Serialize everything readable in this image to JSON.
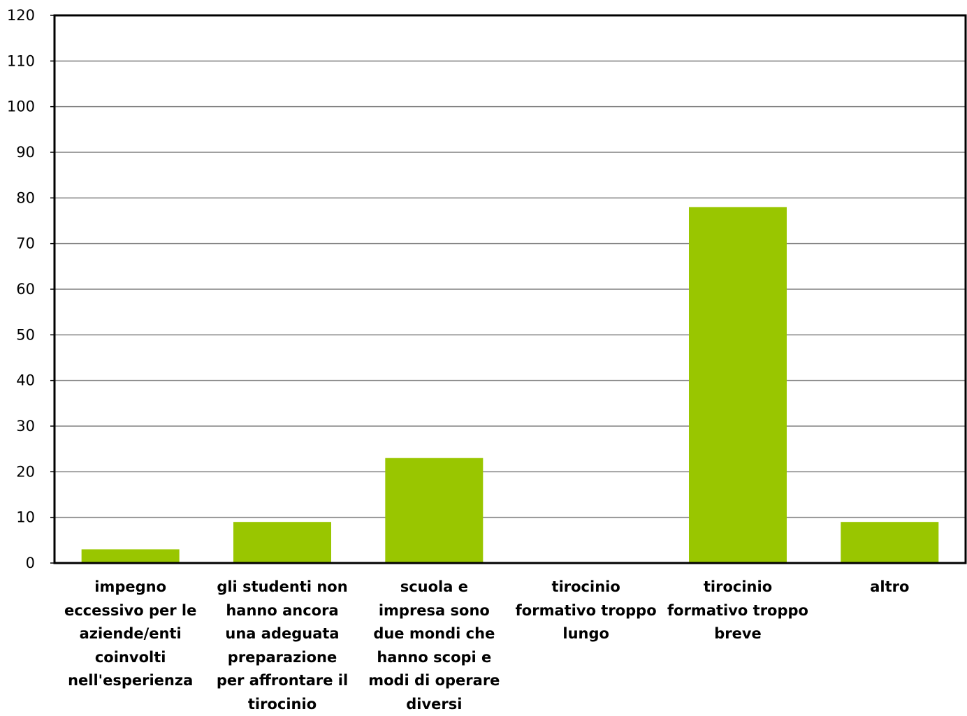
{
  "chart_data": {
    "type": "bar",
    "title": "",
    "xlabel": "",
    "ylabel": "",
    "ylim": [
      0,
      120
    ],
    "yticks": [
      0,
      10,
      20,
      30,
      40,
      50,
      60,
      70,
      80,
      90,
      100,
      110,
      120
    ],
    "grid": true,
    "bar_color": "#99c600",
    "categories": [
      "impegno eccessivo per le aziende/enti coinvolti nell'esperienza",
      "gli studenti non hanno ancora una adeguata preparazione per affrontare il tirocinio",
      "scuola e impresa sono due mondi che hanno scopi e modi di operare diversi",
      "tirocinio formativo troppo lungo",
      "tirocinio formativo troppo breve",
      "altro"
    ],
    "values": [
      3,
      9,
      23,
      0,
      78,
      9
    ]
  }
}
